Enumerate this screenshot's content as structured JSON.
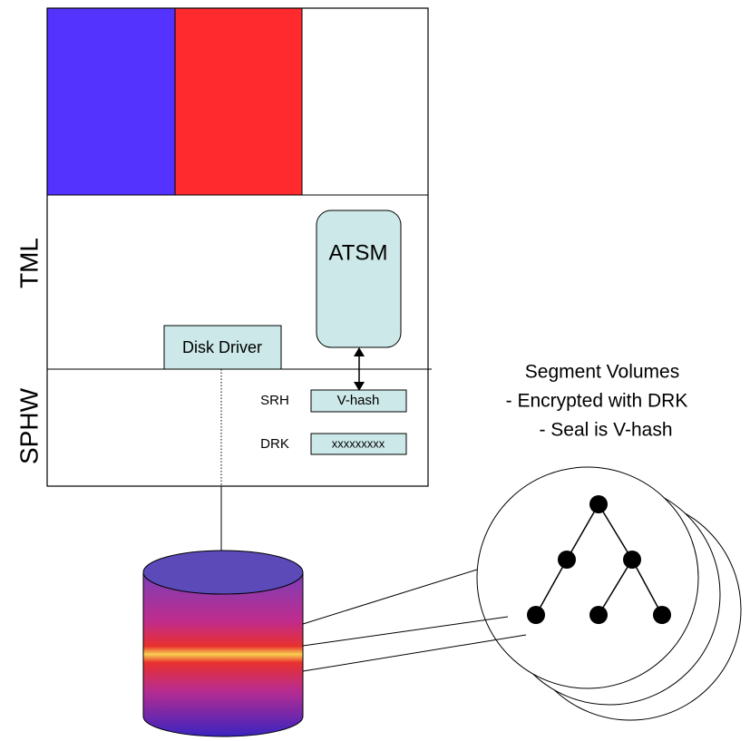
{
  "labels": {
    "tml": "TML",
    "sphw": "SPHW"
  },
  "boxes": {
    "atsm": "ATSM",
    "disk_driver": "Disk Driver",
    "v_hash": "V-hash",
    "drk_value": "xxxxxxxxx"
  },
  "fields": {
    "srh": "SRH",
    "drk": "DRK"
  },
  "callout": {
    "lines": [
      "Segment Volumes",
      "- Encrypted with DRK",
      "- Seal is V-hash"
    ]
  }
}
